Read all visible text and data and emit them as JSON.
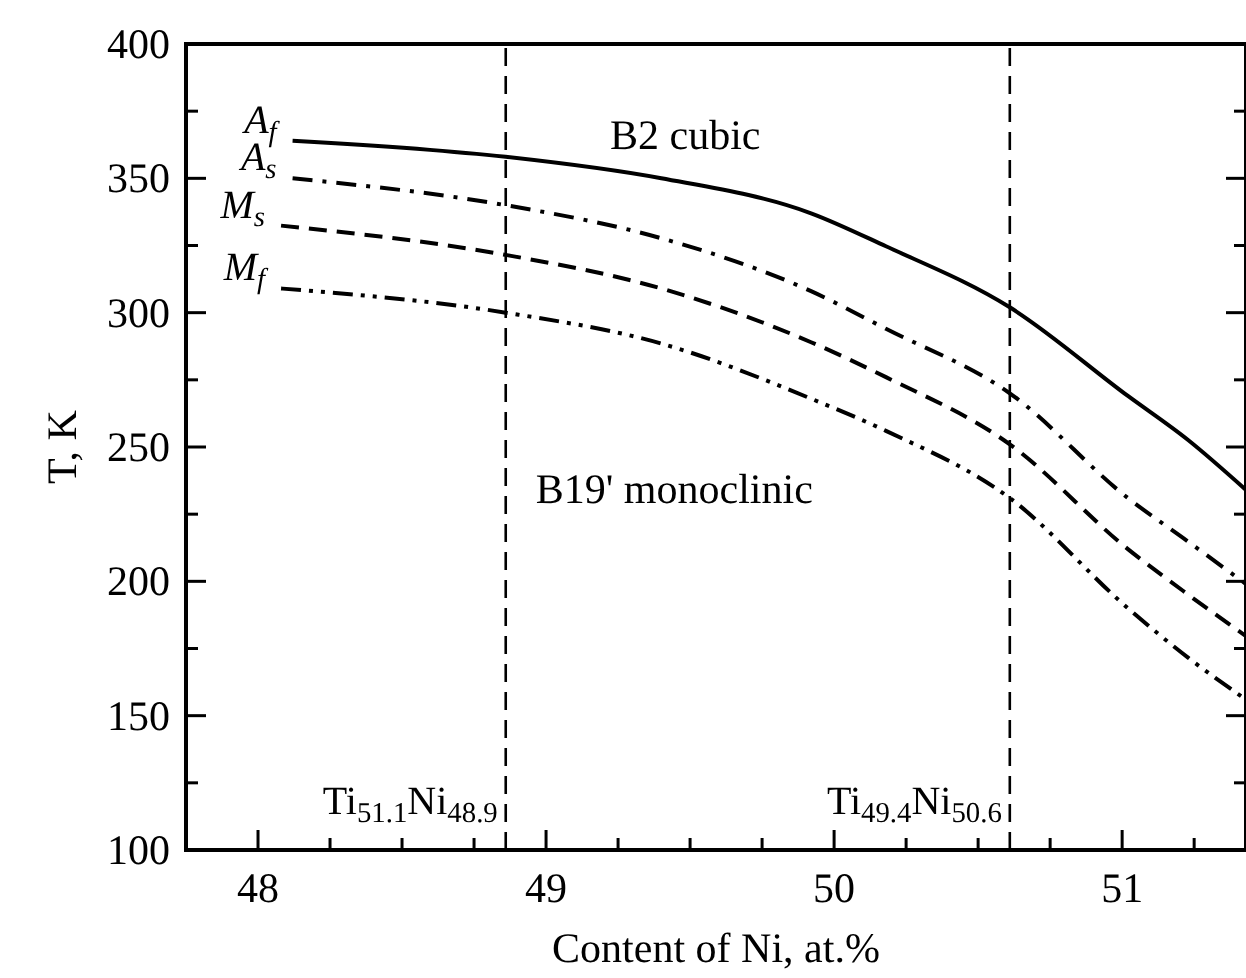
{
  "chart_data": {
    "type": "line",
    "xlabel": "Content of Ni, at.%",
    "ylabel": "T, K",
    "xlim": [
      47.75,
      51.43
    ],
    "ylim": [
      100,
      400
    ],
    "xticks": [
      {
        "value": 47.75,
        "label": null
      },
      48,
      {
        "value": 48.25,
        "label": null
      },
      {
        "value": 48.5,
        "label": null
      },
      {
        "value": 48.75,
        "label": null
      },
      49,
      {
        "value": 49.25,
        "label": null
      },
      {
        "value": 49.5,
        "label": null
      },
      {
        "value": 49.75,
        "label": null
      },
      50,
      {
        "value": 50.25,
        "label": null
      },
      {
        "value": 50.5,
        "label": null
      },
      {
        "value": 50.75,
        "label": null
      },
      51,
      {
        "value": 51.25,
        "label": null
      }
    ],
    "yticks": [
      100,
      {
        "value": 125,
        "label": null
      },
      150,
      {
        "value": 175,
        "label": null
      },
      200,
      {
        "value": 225,
        "label": null
      },
      250,
      {
        "value": 275,
        "label": null
      },
      300,
      {
        "value": 325,
        "label": null
      },
      350,
      {
        "value": 375,
        "label": null
      },
      400
    ],
    "series": [
      {
        "name": "A$_{f}$",
        "color": "#000000",
        "line_style": "solid",
        "x": [
          48.12,
          48.86,
          49.4,
          49.92,
          50.18,
          50.61,
          51.02,
          51.23,
          51.43
        ],
        "values": [
          364,
          358,
          350,
          337,
          324.7,
          302,
          269,
          252.5,
          234
        ]
      },
      {
        "name": "A$_{s}$",
        "color": "#000000",
        "line_style": "dashdot",
        "x": [
          48.12,
          48.86,
          49.4,
          49.92,
          50.18,
          50.61,
          51.02,
          51.23,
          51.43
        ],
        "values": [
          350,
          340,
          327.7,
          308,
          294,
          270,
          231,
          214.7,
          199
        ]
      },
      {
        "name": "M$_{s}$",
        "color": "#000000",
        "line_style": "dashed",
        "x": [
          48.08,
          48.86,
          49.4,
          49.92,
          50.18,
          50.61,
          51.02,
          51.23,
          51.43
        ],
        "values": [
          332.4,
          321.5,
          309,
          289,
          276,
          251,
          212,
          195,
          179.6
        ]
      },
      {
        "name": "M$_{f}$",
        "color": "#000000",
        "line_style": "dashdotdot",
        "x": [
          48.08,
          48.86,
          49.4,
          49.92,
          50.18,
          50.61,
          51.02,
          51.23,
          51.43
        ],
        "values": [
          309,
          300,
          288.5,
          268,
          256,
          231,
          190,
          171.5,
          156
        ]
      }
    ],
    "ref_lines": [
      {
        "axis": "x",
        "value": 48.86,
        "label": "Ti$_{51.1}$Ni$_{48.9}$",
        "color": "#000000",
        "line_style": "dashed"
      },
      {
        "axis": "x",
        "value": 50.61,
        "label": "Ti$_{49.4}$Ni$_{50.6}$",
        "color": "#000000",
        "line_style": "dashed"
      }
    ],
    "annotations": [
      "B2 cubic",
      "B19' monoclinic"
    ]
  }
}
